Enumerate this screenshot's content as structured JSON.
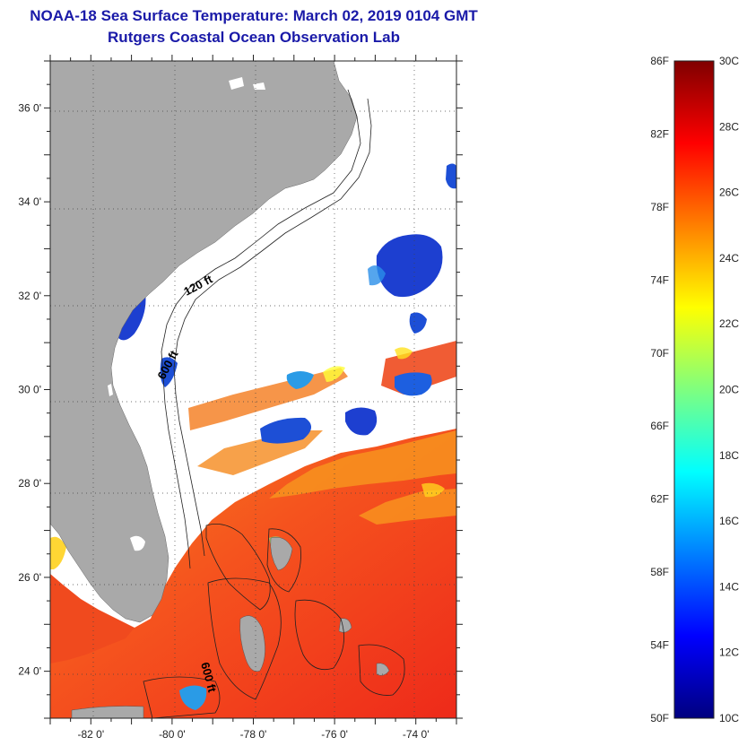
{
  "title": "NOAA-18 Sea Surface Temperature:  March 02, 2019 0104 GMT",
  "subtitle": "Rutgers Coastal Ocean Observation Lab",
  "map": {
    "lon_range": [
      -83,
      -73
    ],
    "lat_range": [
      23,
      37
    ],
    "lat_labels": [
      {
        "value": 36,
        "label": "36 0'"
      },
      {
        "value": 34,
        "label": "34 0'"
      },
      {
        "value": 32,
        "label": "32 0'"
      },
      {
        "value": 30,
        "label": "30 0'"
      },
      {
        "value": 28,
        "label": "28 0'"
      },
      {
        "value": 26,
        "label": "26 0'"
      },
      {
        "value": 24,
        "label": "24 0'"
      }
    ],
    "lon_labels": [
      {
        "value": -82,
        "label": "-82 0'"
      },
      {
        "value": -80,
        "label": "-80 0'"
      },
      {
        "value": -78,
        "label": "-78 0'"
      },
      {
        "value": -76,
        "label": "-76 0'"
      },
      {
        "value": -74,
        "label": "-74 0'"
      }
    ],
    "contour_labels": [
      "120 ft",
      "600 ft",
      "600 ft"
    ],
    "colors": {
      "land": "#a9a9a9",
      "cloud": "#ffffff",
      "warm": "#f03a1e",
      "orange": "#f7821c",
      "cool": "#1d4fd6"
    }
  },
  "colorbar": {
    "colors": [
      "#00007f",
      "#0000ff",
      "#007fff",
      "#00ffff",
      "#7fff7f",
      "#ffff00",
      "#ff7f00",
      "#ff0000",
      "#7f0000"
    ],
    "fahrenheit": [
      "86F",
      "82F",
      "78F",
      "74F",
      "70F",
      "66F",
      "62F",
      "58F",
      "54F",
      "50F"
    ],
    "celsius": [
      "30C",
      "28C",
      "26C",
      "24C",
      "22C",
      "20C",
      "18C",
      "16C",
      "14C",
      "12C",
      "10C"
    ]
  }
}
